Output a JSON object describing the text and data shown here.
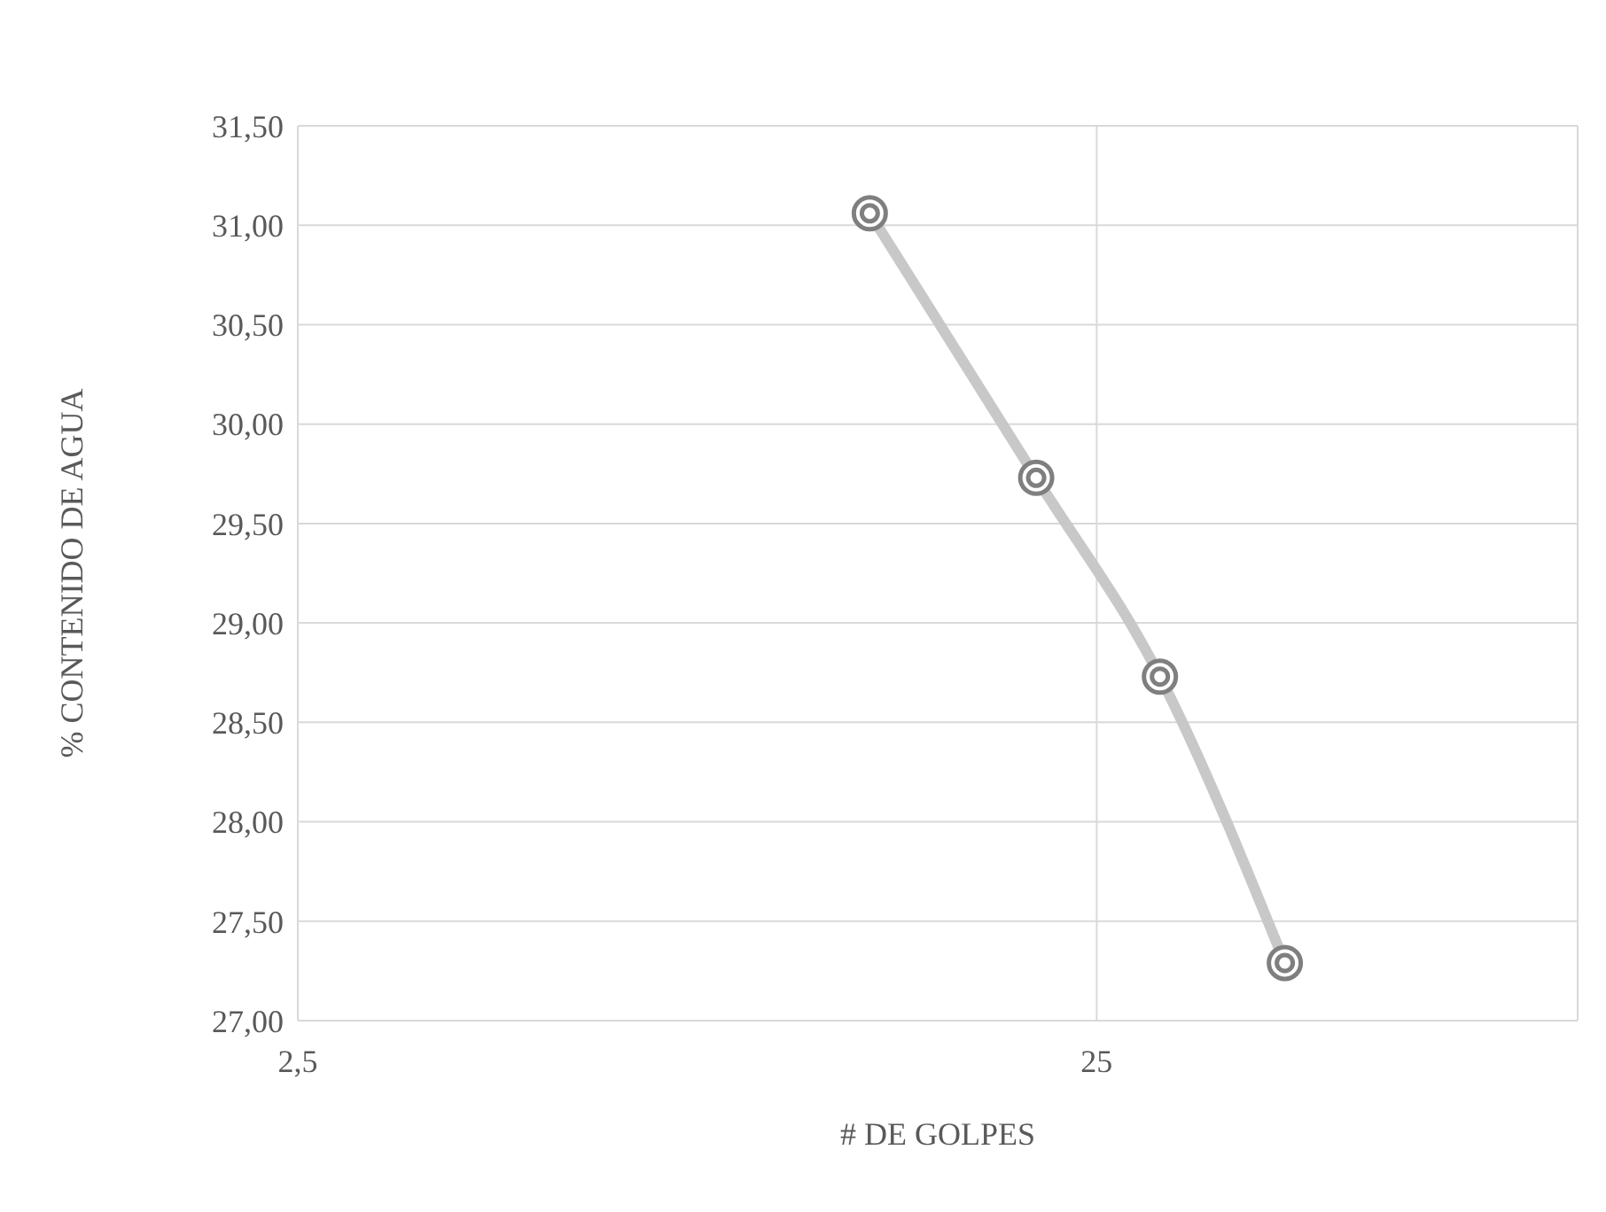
{
  "chart_data": {
    "type": "scatter",
    "xlabel": "# DE GOLPES",
    "ylabel": "% CONTENIDO DE AGUA",
    "log": "x",
    "xlim": [
      2.5,
      100
    ],
    "xticks": [
      {
        "value": 2.5,
        "label": "2,5"
      },
      25
    ],
    "ylim": [
      27,
      31.5
    ],
    "yticks": [
      {
        "value": 27,
        "label": "27,00"
      },
      {
        "value": 27.5,
        "label": "27,50"
      },
      {
        "value": 28,
        "label": "28,00"
      },
      {
        "value": 28.5,
        "label": "28,50"
      },
      {
        "value": 29,
        "label": "29,00"
      },
      {
        "value": 29.5,
        "label": "29,50"
      },
      {
        "value": 30,
        "label": "30,00"
      },
      {
        "value": 30.5,
        "label": "30,50"
      },
      {
        "value": 31,
        "label": "31,00"
      },
      {
        "value": 31.5,
        "label": "31,50"
      }
    ],
    "grid": true,
    "marker": "circle",
    "series": [
      {
        "type": "line",
        "color": "#c8c8c8",
        "x": [
          13,
          21,
          30,
          43
        ],
        "values": [
          31.06,
          29.73,
          28.73,
          27.29
        ]
      },
      {
        "color": "#7f7f7f",
        "x": [
          13,
          21,
          30,
          43
        ],
        "values": [
          31.06,
          29.73,
          28.73,
          27.29
        ]
      }
    ]
  }
}
